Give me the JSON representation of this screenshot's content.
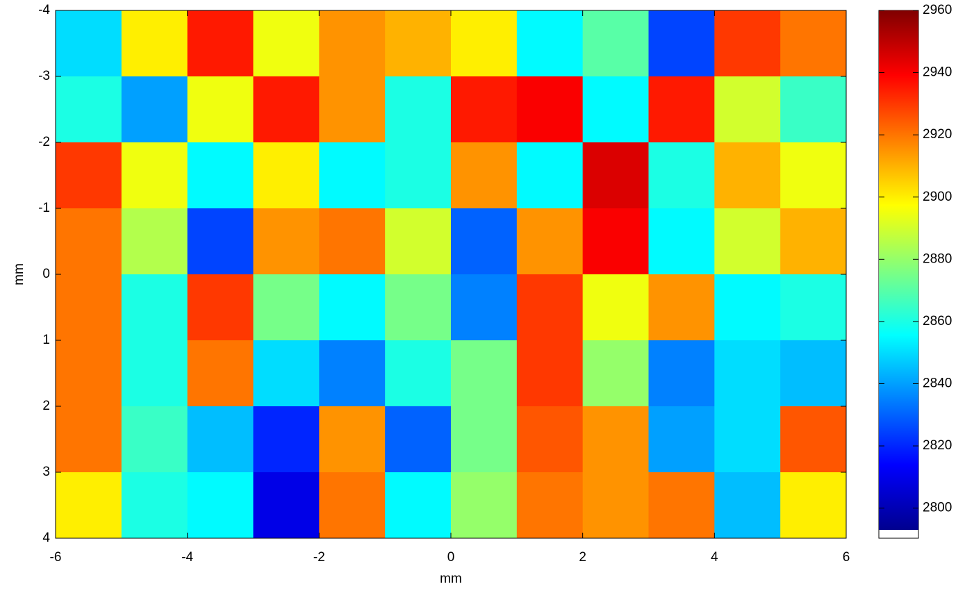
{
  "chart_data": {
    "type": "heatmap",
    "xlabel": "mm",
    "ylabel": "mm",
    "x": [
      -5.5,
      -4.5,
      -3.5,
      -2.5,
      -1.5,
      -0.5,
      0.5,
      1.5,
      2.5,
      3.5,
      4.5,
      5.5
    ],
    "y": [
      -3.5,
      -2.5,
      -1.5,
      -0.5,
      0.5,
      1.5,
      2.5,
      3.5
    ],
    "z": [
      [
        2850,
        2900,
        2935,
        2895,
        2915,
        2910,
        2900,
        2855,
        2870,
        2825,
        2930,
        2920
      ],
      [
        2860,
        2840,
        2895,
        2935,
        2915,
        2860,
        2935,
        2940,
        2855,
        2935,
        2890,
        2865
      ],
      [
        2930,
        2895,
        2855,
        2900,
        2855,
        2860,
        2915,
        2855,
        2945,
        2860,
        2910,
        2895
      ],
      [
        2920,
        2885,
        2825,
        2915,
        2920,
        2890,
        2830,
        2915,
        2940,
        2855,
        2890,
        2910
      ],
      [
        2920,
        2860,
        2930,
        2875,
        2855,
        2875,
        2835,
        2930,
        2895,
        2915,
        2855,
        2860
      ],
      [
        2920,
        2860,
        2920,
        2850,
        2835,
        2860,
        2875,
        2930,
        2880,
        2835,
        2850,
        2845
      ],
      [
        2920,
        2865,
        2845,
        2820,
        2915,
        2830,
        2875,
        2925,
        2915,
        2840,
        2850,
        2925
      ],
      [
        2900,
        2860,
        2855,
        2810,
        2920,
        2855,
        2880,
        2920,
        2915,
        2920,
        2845,
        2900
      ]
    ],
    "xlim": [
      -6,
      6
    ],
    "ylim": [
      4,
      -4
    ],
    "xticks": [
      -6,
      -4,
      -2,
      0,
      2,
      4,
      6
    ],
    "yticks": [
      -4,
      -3,
      -2,
      -1,
      0,
      1,
      2,
      3,
      4
    ],
    "colormap": "jet",
    "clim": [
      2793,
      2960
    ],
    "cticks": [
      2800,
      2820,
      2840,
      2860,
      2880,
      2900,
      2920,
      2940,
      2960
    ]
  }
}
